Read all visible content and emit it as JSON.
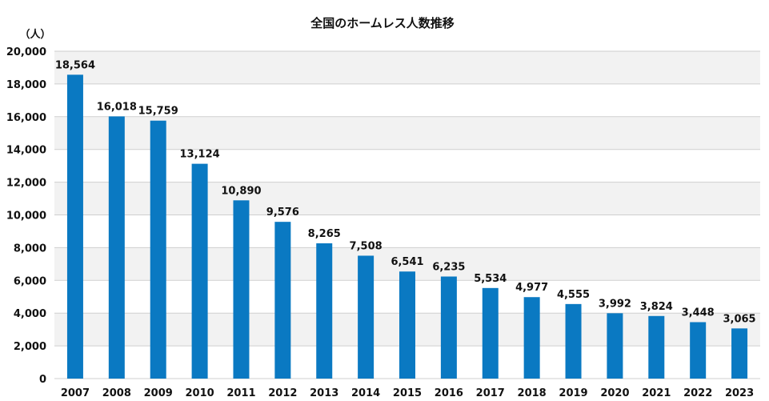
{
  "chart_data": {
    "type": "bar",
    "title": "全国のホームレス人数推移",
    "ylabel": "（人）",
    "xlabel": "",
    "ylim": [
      0,
      20000
    ],
    "yticks": [
      0,
      2000,
      4000,
      6000,
      8000,
      10000,
      12000,
      14000,
      16000,
      18000,
      20000
    ],
    "ytick_labels": [
      "0",
      "2,000",
      "4,000",
      "6,000",
      "8,000",
      "10,000",
      "12,000",
      "14,000",
      "16,000",
      "18,000",
      "20,000"
    ],
    "categories": [
      "2007",
      "2008",
      "2009",
      "2010",
      "2011",
      "2012",
      "2013",
      "2014",
      "2015",
      "2016",
      "2017",
      "2018",
      "2019",
      "2020",
      "2021",
      "2022",
      "2023"
    ],
    "values": [
      18564,
      16018,
      15759,
      13124,
      10890,
      9576,
      8265,
      7508,
      6541,
      6235,
      5534,
      4977,
      4555,
      3992,
      3824,
      3448,
      3065
    ],
    "value_labels": [
      "18,564",
      "16,018",
      "15,759",
      "13,124",
      "10,890",
      "9,576",
      "8,265",
      "7,508",
      "6,541",
      "6,235",
      "5,534",
      "4,977",
      "4,555",
      "3,992",
      "3,824",
      "3,448",
      "3,065"
    ],
    "grid": true,
    "colors": {
      "bar": "#0a79c2",
      "band": "#f2f2f2",
      "grid": "#cfcfcf"
    }
  }
}
